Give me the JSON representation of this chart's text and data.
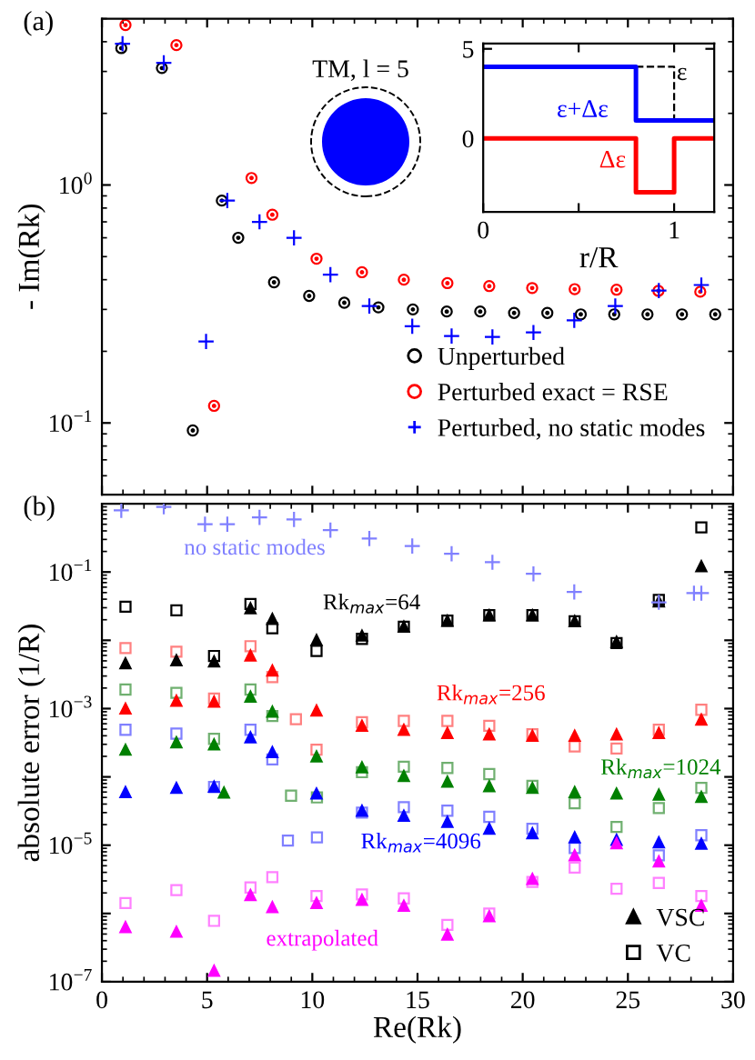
{
  "chart_data": [
    {
      "type": "scatter",
      "ylabel": "- Im(Rk)",
      "log": "y",
      "xlim": [
        0,
        30
      ],
      "ylim": [
        0.05,
        5
      ],
      "xticks": [
        {
          "value": 0,
          "label": null
        },
        {
          "value": 5,
          "label": null
        },
        {
          "value": 10,
          "label": null
        },
        {
          "value": 15,
          "label": null
        },
        {
          "value": 20,
          "label": null
        },
        {
          "value": 25,
          "label": null
        },
        {
          "value": 30,
          "label": null
        }
      ],
      "yticks": [
        {
          "value": 0.1,
          "label": "10$^{−1}$"
        },
        {
          "value": 1,
          "label": "10$^{0}$"
        }
      ],
      "tick_labels": "y",
      "legend": "bottom right",
      "annotations": [
        "(a)",
        "TM, l = 5"
      ],
      "series": [
        {
          "name": "Unperturbed",
          "color": "#000000",
          "marker": "circle",
          "x": [
            0.92,
            2.85,
            4.32,
            5.7,
            6.48,
            8.18,
            9.85,
            11.52,
            13.14,
            14.78,
            16.39,
            17.98,
            19.59,
            21.17,
            22.76,
            24.35,
            25.93,
            27.57,
            29.15
          ],
          "values": [
            3.76,
            3.1,
            0.093,
            0.86,
            0.6,
            0.39,
            0.342,
            0.32,
            0.306,
            0.3,
            0.294,
            0.294,
            0.29,
            0.29,
            0.286,
            0.286,
            0.286,
            0.286,
            0.286
          ]
        },
        {
          "name": "Perturbed exact = RSE",
          "color": "#ff0000",
          "marker": "circle",
          "x": [
            1.12,
            3.54,
            5.33,
            7.11,
            8.1,
            10.2,
            12.36,
            14.35,
            16.42,
            18.41,
            20.45,
            22.47,
            24.46,
            26.45,
            28.44
          ],
          "values": [
            4.7,
            3.87,
            0.118,
            1.07,
            0.75,
            0.49,
            0.43,
            0.4,
            0.387,
            0.376,
            0.369,
            0.365,
            0.363,
            0.359,
            0.356
          ]
        },
        {
          "name": "Perturbed, no static modes",
          "color": "#0000ff",
          "marker": "cross",
          "x": [
            0.98,
            2.94,
            4.95,
            5.96,
            7.49,
            9.13,
            10.86,
            12.71,
            14.75,
            16.62,
            18.56,
            20.51,
            22.45,
            24.4,
            26.47,
            28.49
          ],
          "values": [
            3.92,
            3.26,
            0.22,
            0.86,
            0.7,
            0.6,
            0.42,
            0.31,
            0.255,
            0.232,
            0.23,
            0.24,
            0.27,
            0.31,
            0.36,
            0.38
          ]
        }
      ]
    },
    {
      "type": "step",
      "xlabel": "r/R",
      "xlim": [
        0,
        1.21
      ],
      "ylim": [
        -4.1,
        5.3
      ],
      "xticks": [
        0,
        {
          "value": 0.5,
          "label": null
        },
        1
      ],
      "yticks": [
        0,
        5
      ],
      "annotations": [
        "ε+Δε",
        "Δε",
        "ε"
      ],
      "series": [
        {
          "color": "#000000",
          "line_style": "dashed",
          "x": [
            0.8,
            1.0
          ],
          "values": [
            4,
            1
          ]
        },
        {
          "color": "#0000ff",
          "line_style": "solid",
          "x": [
            0,
            0.8,
            1.2
          ],
          "values": [
            4,
            1,
            1
          ]
        },
        {
          "color": "#ff0000",
          "line_style": "solid",
          "x": [
            0,
            0.8,
            1.0,
            1.2
          ],
          "values": [
            0,
            -3,
            0,
            0
          ]
        }
      ]
    },
    {
      "type": "scatter",
      "xlabel": "Re(Rk)",
      "ylabel": "absolute error (1/R)",
      "log": "y",
      "xlim": [
        0,
        30
      ],
      "ylim": [
        1e-07,
        1
      ],
      "xticks": [
        0,
        5,
        10,
        15,
        20,
        25,
        30
      ],
      "yticks": [
        {
          "value": 1e-07,
          "label": "10$^{−7}$"
        },
        {
          "value": 1e-06,
          "label": null
        },
        {
          "value": 1e-05,
          "label": "10$^{−5}$"
        },
        {
          "value": 0.0001,
          "label": null
        },
        {
          "value": 0.001,
          "label": "10$^{−3}$"
        },
        {
          "value": 0.01,
          "label": null
        },
        {
          "value": 0.1,
          "label": "10$^{−1}$"
        }
      ],
      "legend": "bottom right",
      "annotations": [
        "(b)",
        "no static modes",
        "Rk$_{max}$=64",
        "Rk$_{max}$=256",
        "Rk$_{max}$=1024",
        "Rk$_{max}$=4096",
        "extrapolated"
      ],
      "series": [
        {
          "color": "#8080ff",
          "marker": "cross",
          "x": [
            0.92,
            2.94,
            4.9,
            5.96,
            7.49,
            9.13,
            10.86,
            12.71,
            14.75,
            16.62,
            18.56,
            20.51,
            22.45,
            26.47,
            28.14,
            28.49
          ],
          "values": [
            0.8,
            0.9,
            0.5,
            0.5,
            0.63,
            0.59,
            0.41,
            0.31,
            0.24,
            0.185,
            0.139,
            0.094,
            0.051,
            0.036,
            0.049,
            0.049
          ]
        },
        {
          "name": "VSC",
          "color": "#000000",
          "marker": "triangle",
          "x": [
            1.12,
            3.54,
            5.33,
            7.06,
            8.1,
            10.2,
            12.36,
            14.35,
            16.42,
            18.41,
            20.46,
            22.47,
            24.46,
            26.47,
            28.49
          ],
          "values": [
            0.0046,
            0.0051,
            0.0049,
            0.0295,
            0.0205,
            0.0101,
            0.0117,
            0.0158,
            0.0194,
            0.0233,
            0.0233,
            0.019,
            0.0095,
            0.037,
            0.122
          ]
        },
        {
          "name": "VC",
          "color": "#000000",
          "marker": "square",
          "x": [
            1.12,
            3.54,
            5.33,
            7.06,
            8.1,
            10.2,
            12.36,
            14.35,
            16.42,
            18.41,
            20.46,
            22.47,
            24.46,
            26.47,
            28.49
          ],
          "values": [
            0.031,
            0.0275,
            0.0059,
            0.034,
            0.015,
            0.007,
            0.0105,
            0.0158,
            0.0194,
            0.0233,
            0.0233,
            0.019,
            0.0091,
            0.039,
            0.45
          ]
        },
        {
          "color": "#ff0000",
          "marker": "triangle",
          "x": [
            1.12,
            3.54,
            5.33,
            7.06,
            8.1,
            10.2,
            12.36,
            14.35,
            16.42,
            18.41,
            20.46,
            22.47,
            24.46,
            26.47,
            28.49
          ],
          "values": [
            0.001,
            0.0013,
            0.00126,
            0.006,
            0.0036,
            0.00094,
            0.00056,
            0.00049,
            0.00044,
            0.00042,
            0.0004,
            0.0004,
            0.00042,
            0.00044,
            0.00069
          ]
        },
        {
          "color": "#ff8080",
          "marker": "square",
          "x": [
            1.12,
            3.54,
            5.33,
            7.06,
            8.1,
            9.22,
            10.2,
            12.36,
            14.35,
            16.42,
            18.41,
            20.46,
            22.47,
            24.46,
            26.47,
            28.49
          ],
          "values": [
            0.0077,
            0.0068,
            0.0014,
            0.0082,
            0.0029,
            0.0007,
            0.00025,
            0.00063,
            0.00066,
            0.00066,
            0.00056,
            0.00042,
            0.00028,
            0.00026,
            0.00049,
            0.00096
          ]
        },
        {
          "color": "#008000",
          "marker": "triangle",
          "x": [
            1.12,
            3.54,
            5.33,
            5.8,
            7.06,
            8.1,
            10.2,
            12.36,
            14.35,
            16.42,
            18.41,
            20.46,
            22.47,
            24.46,
            26.47,
            28.49
          ],
          "values": [
            0.00025,
            0.00032,
            0.0003,
            5.9e-05,
            0.0015,
            0.0009,
            0.0002,
            0.000138,
            0.000103,
            8.5e-05,
            7.3e-05,
            6.9e-05,
            6e-05,
            5.7e-05,
            5.5e-05,
            5.1e-05
          ]
        },
        {
          "color": "#70b070",
          "marker": "square",
          "x": [
            1.12,
            3.54,
            5.33,
            7.06,
            8.1,
            8.99,
            10.22,
            12.36,
            14.35,
            16.42,
            18.41,
            20.46,
            22.47,
            24.46,
            26.47,
            28.49
          ],
          "values": [
            0.0019,
            0.0017,
            0.00036,
            0.0019,
            0.00078,
            5.3e-05,
            5e-05,
            0.000117,
            0.000141,
            0.000135,
            0.00011,
            7.4e-05,
            4.1e-05,
            1.85e-05,
            3.5e-05,
            6.9e-05
          ]
        },
        {
          "color": "#0000ff",
          "marker": "triangle",
          "x": [
            1.12,
            3.54,
            5.33,
            7.06,
            8.1,
            10.2,
            12.36,
            14.35,
            16.42,
            18.41,
            20.46,
            22.47,
            24.46,
            26.47,
            28.49
          ],
          "values": [
            6e-05,
            6.9e-05,
            7.2e-05,
            0.00038,
            0.00023,
            5.7e-05,
            3.2e-05,
            2.7e-05,
            2.2e-05,
            1.74e-05,
            1.5e-05,
            1.3e-05,
            1.2e-05,
            1.1e-05,
            1.05e-05
          ]
        },
        {
          "color": "#8080ff",
          "marker": "square",
          "x": [
            1.12,
            3.54,
            5.33,
            7.06,
            8.1,
            8.84,
            10.22,
            12.36,
            14.35,
            16.42,
            18.41,
            20.46,
            22.47,
            24.46,
            26.47,
            28.49
          ],
          "values": [
            0.00049,
            0.00043,
            7.1e-05,
            0.00049,
            0.00018,
            1.17e-05,
            1.3e-05,
            3e-05,
            3.6e-05,
            3.2e-05,
            2.6e-05,
            1.74e-05,
            9.1e-06,
            null,
            7.1e-06,
            1.4e-05
          ]
        },
        {
          "color": "#ff00ff",
          "marker": "triangle",
          "x": [
            1.12,
            3.54,
            5.33,
            7.06,
            8.1,
            10.2,
            12.36,
            14.35,
            16.42,
            18.41,
            20.46,
            22.47,
            24.46,
            26.47,
            28.49
          ],
          "values": [
            6.3e-07,
            5.4e-07,
            1.45e-07,
            1.86e-06,
            1.24e-06,
            1.42e-06,
            1.58e-06,
            1.3e-06,
            4.9e-07,
            9.1e-07,
            3.2e-06,
            7.1e-06,
            1.07e-05,
            5.8e-06,
            1.3e-06
          ]
        },
        {
          "color": "#ff80ff",
          "marker": "square",
          "x": [
            1.12,
            3.54,
            5.33,
            7.06,
            8.1,
            10.2,
            12.36,
            14.35,
            16.42,
            18.41,
            20.46,
            22.47,
            24.46,
            26.47,
            28.49
          ],
          "values": [
            1.42e-06,
            2.2e-06,
            7.8e-07,
            2.4e-06,
            3.4e-06,
            1.8e-06,
            1.9e-06,
            1.66e-06,
            6.8e-07,
            1e-06,
            2.9e-06,
            4.7e-06,
            2.3e-06,
            2.8e-06,
            1.8e-06
          ]
        }
      ]
    }
  ]
}
